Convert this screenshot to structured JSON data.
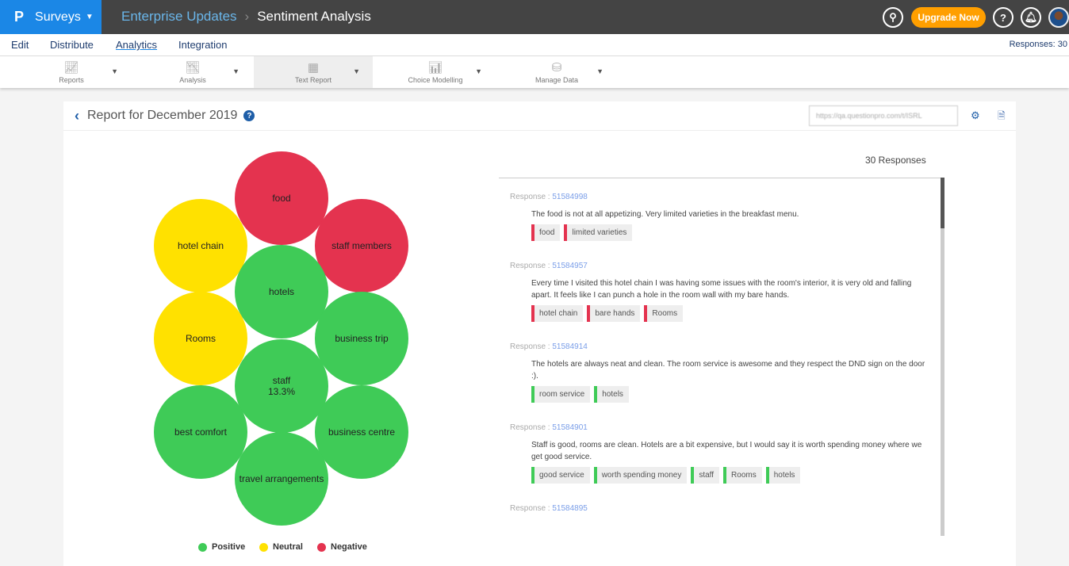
{
  "topbar": {
    "logo": "P",
    "product": "Surveys",
    "breadcrumb_parent": "Enterprise Updates",
    "breadcrumb_current": "Sentiment Analysis",
    "upgrade_label": "Upgrade Now"
  },
  "menu": {
    "items": [
      "Edit",
      "Distribute",
      "Analytics",
      "Integration"
    ],
    "active": "Analytics",
    "responses": "Responses: 30"
  },
  "toolbar": {
    "items": [
      "Reports",
      "Analysis",
      "Text Report",
      "Choice Modelling",
      "Manage Data"
    ],
    "selected": "Text Report"
  },
  "report": {
    "title": "Report for December 2019",
    "url": "https://qa.questionpro.com/t/ISRL"
  },
  "colors": {
    "positive": "#3fcb57",
    "neutral": "#ffe100",
    "negative": "#e4334f"
  },
  "bubbles": [
    {
      "label": "food",
      "sentiment": "negative"
    },
    {
      "label": "hotel chain",
      "sentiment": "neutral"
    },
    {
      "label": "staff members",
      "sentiment": "negative"
    },
    {
      "label": "hotels",
      "sentiment": "positive"
    },
    {
      "label": "Rooms",
      "sentiment": "neutral"
    },
    {
      "label": "business trip",
      "sentiment": "positive"
    },
    {
      "label": "staff",
      "sentiment": "positive",
      "percent": "13.3%"
    },
    {
      "label": "best comfort",
      "sentiment": "positive"
    },
    {
      "label": "business centre",
      "sentiment": "positive"
    },
    {
      "label": "travel arrangements",
      "sentiment": "positive"
    }
  ],
  "legend": [
    "Positive",
    "Neutral",
    "Negative"
  ],
  "responses_count": "30 Responses",
  "responses": [
    {
      "prefix": "Response : ",
      "id": "51584998",
      "text": "The food is not at all appetizing. Very limited varieties in the breakfast menu.",
      "tags": [
        {
          "label": "food",
          "sentiment": "negative"
        },
        {
          "label": "limited varieties",
          "sentiment": "negative"
        }
      ]
    },
    {
      "prefix": "Response : ",
      "id": "51584957",
      "text": "Every time I visited this hotel chain I was having some issues with the room's interior, it is very old and falling apart. It feels like I can punch a hole in the room wall with my bare hands.",
      "tags": [
        {
          "label": "hotel chain",
          "sentiment": "negative"
        },
        {
          "label": "bare hands",
          "sentiment": "negative"
        },
        {
          "label": "Rooms",
          "sentiment": "negative"
        }
      ]
    },
    {
      "prefix": "Response : ",
      "id": "51584914",
      "text": "The hotels are always neat and clean. The room service is awesome and they respect the DND sign on the door :).",
      "tags": [
        {
          "label": "room service",
          "sentiment": "positive"
        },
        {
          "label": "hotels",
          "sentiment": "positive"
        }
      ]
    },
    {
      "prefix": "Response : ",
      "id": "51584901",
      "text": "Staff is good, rooms are clean. Hotels are a bit expensive, but I would say it is worth spending money where we get good service.",
      "tags": [
        {
          "label": "good service",
          "sentiment": "positive"
        },
        {
          "label": "worth spending money",
          "sentiment": "positive"
        },
        {
          "label": "staff",
          "sentiment": "positive"
        },
        {
          "label": "Rooms",
          "sentiment": "positive"
        },
        {
          "label": "hotels",
          "sentiment": "positive"
        }
      ]
    },
    {
      "prefix": "Response : ",
      "id": "51584895",
      "text": "",
      "tags": []
    }
  ]
}
